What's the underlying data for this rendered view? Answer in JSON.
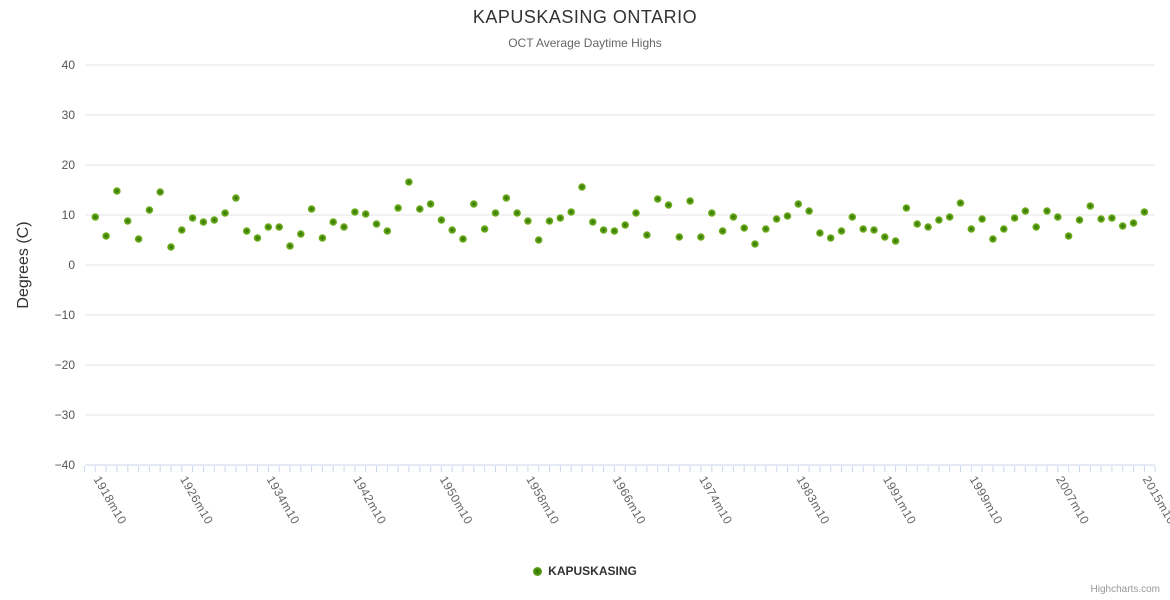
{
  "credits": "Highcharts.com",
  "chart_data": {
    "type": "scatter",
    "title": "KAPUSKASING ONTARIO",
    "subtitle": "OCT Average Daytime Highs",
    "xlabel": "",
    "ylabel": "Degrees (C)",
    "ylim": [
      -40,
      40
    ],
    "y_ticks": [
      40,
      30,
      20,
      10,
      0,
      -10,
      -20,
      -30,
      -40
    ],
    "x_tick_labels": [
      "1918m10",
      "1926m10",
      "1934m10",
      "1942m10",
      "1950m10",
      "1958m10",
      "1966m10",
      "1974m10",
      "1983m10",
      "1991m10",
      "1999m10",
      "2007m10",
      "2015m10"
    ],
    "grid": true,
    "legend_position": "bottom",
    "marker_color": "#56a00e",
    "series": [
      {
        "name": "KAPUSKASING",
        "x": [
          1918,
          1919,
          1920,
          1921,
          1922,
          1923,
          1924,
          1925,
          1926,
          1927,
          1928,
          1929,
          1930,
          1931,
          1932,
          1933,
          1934,
          1935,
          1936,
          1937,
          1938,
          1939,
          1940,
          1941,
          1942,
          1943,
          1944,
          1945,
          1946,
          1947,
          1948,
          1949,
          1950,
          1951,
          1952,
          1953,
          1954,
          1955,
          1956,
          1957,
          1958,
          1959,
          1960,
          1961,
          1962,
          1963,
          1964,
          1965,
          1966,
          1967,
          1968,
          1969,
          1970,
          1971,
          1972,
          1973,
          1974,
          1975,
          1976,
          1977,
          1978,
          1979,
          1980,
          1981,
          1982,
          1983,
          1984,
          1985,
          1986,
          1987,
          1988,
          1989,
          1990,
          1991,
          1992,
          1993,
          1994,
          1995,
          1996,
          1997,
          1998,
          1999,
          2000,
          2001,
          2002,
          2003,
          2004,
          2005,
          2006,
          2007,
          2008,
          2009,
          2010,
          2011,
          2012,
          2013,
          2014,
          2015
        ],
        "y": [
          9.6,
          5.8,
          14.8,
          8.8,
          5.2,
          11,
          14.6,
          3.6,
          7,
          9.4,
          8.6,
          9,
          10.4,
          13.4,
          6.8,
          5.4,
          7.6,
          7.6,
          3.8,
          6.2,
          11.2,
          5.4,
          8.6,
          7.6,
          10.6,
          10.2,
          8.2,
          6.8,
          11.4,
          16.6,
          11.2,
          12.2,
          9,
          7,
          5.2,
          12.2,
          7.2,
          10.4,
          13.4,
          10.4,
          8.8,
          5,
          8.8,
          9.4,
          10.6,
          15.6,
          8.6,
          7,
          6.8,
          8,
          10.4,
          6,
          13.2,
          12,
          5.6,
          12.8,
          5.6,
          10.4,
          6.8,
          9.6,
          7.4,
          4.2,
          7.2,
          9.2,
          9.8,
          12.2,
          10.8,
          6.4,
          5.4,
          6.8,
          9.6,
          7.2,
          7,
          5.6,
          4.8,
          11.4,
          8.2,
          7.6,
          9,
          9.6,
          12.4,
          7.2,
          9.2,
          5.2,
          7.2,
          9.4,
          10.8,
          7.6,
          10.8,
          9.6,
          5.8,
          9,
          11.8,
          9.2,
          9.4,
          7.8,
          8.4,
          10.6
        ]
      }
    ]
  }
}
